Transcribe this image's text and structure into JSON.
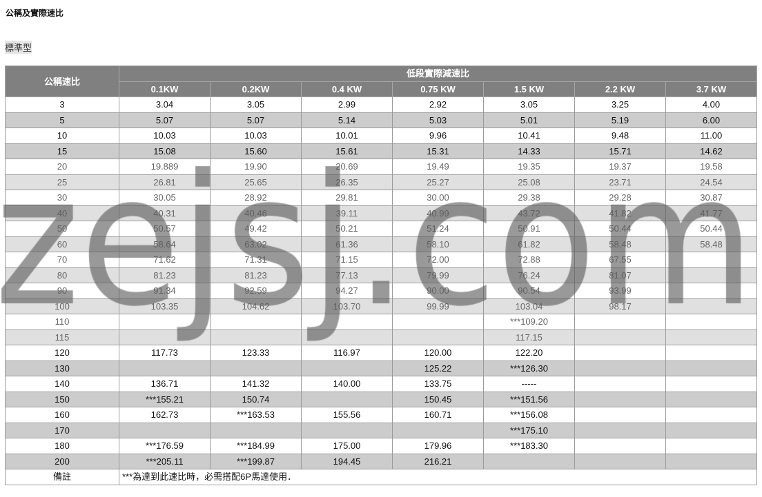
{
  "title": "公稱及實際速比",
  "subtitle": "標準型",
  "table": {
    "row_header": "公稱速比",
    "group_header": "低段實際減速比",
    "columns": [
      "0.1KW",
      "0.2KW",
      "0.4 KW",
      "0.75 KW",
      "1.5 KW",
      "2.2 KW",
      "3.7 KW"
    ],
    "rows": [
      {
        "ratio": "3",
        "style": "dark",
        "values": [
          "3.04",
          "3.05",
          "2.99",
          "2.92",
          "3.05",
          "3.25",
          "4.00"
        ]
      },
      {
        "ratio": "5",
        "style": "dark",
        "values": [
          "5.07",
          "5.07",
          "5.14",
          "5.03",
          "5.01",
          "5.19",
          "6.00"
        ]
      },
      {
        "ratio": "10",
        "style": "dark",
        "values": [
          "10.03",
          "10.03",
          "10.01",
          "9.96",
          "10.41",
          "9.48",
          "11.00"
        ]
      },
      {
        "ratio": "15",
        "style": "dark",
        "values": [
          "15.08",
          "15.60",
          "15.61",
          "15.31",
          "14.33",
          "15.71",
          "14.62"
        ]
      },
      {
        "ratio": "20",
        "style": "light",
        "values": [
          "19.889",
          "19.90",
          "20.69",
          "19.49",
          "19.35",
          "19.37",
          "19.58"
        ]
      },
      {
        "ratio": "25",
        "style": "light",
        "values": [
          "26.81",
          "25.65",
          "26.35",
          "25.27",
          "25.08",
          "23.71",
          "24.54"
        ]
      },
      {
        "ratio": "30",
        "style": "light",
        "values": [
          "30.05",
          "28.92",
          "29.81",
          "30.00",
          "29.38",
          "29.28",
          "30.87"
        ]
      },
      {
        "ratio": "40",
        "style": "light",
        "values": [
          "40.31",
          "40.46",
          "39.11",
          "40.99",
          "43.72",
          "41.82",
          "41.77"
        ]
      },
      {
        "ratio": "50",
        "style": "light",
        "values": [
          "50.57",
          "49.42",
          "50.21",
          "51.24",
          "50.91",
          "50.44",
          "50.44"
        ]
      },
      {
        "ratio": "60",
        "style": "light",
        "values": [
          "58.64",
          "63.02",
          "61.36",
          "58.10",
          "61.82",
          "58.48",
          "58.48"
        ]
      },
      {
        "ratio": "70",
        "style": "light",
        "values": [
          "71.62",
          "71.31",
          "71.15",
          "72.00",
          "72.88",
          "67.55",
          ""
        ]
      },
      {
        "ratio": "80",
        "style": "light",
        "values": [
          "81.23",
          "81.23",
          "77.13",
          "79.99",
          "76.24",
          "81.07",
          ""
        ]
      },
      {
        "ratio": "90",
        "style": "light",
        "values": [
          "91.34",
          "92.59",
          "94.27",
          "90.00",
          "90.54",
          "93.99",
          ""
        ]
      },
      {
        "ratio": "100",
        "style": "light",
        "values": [
          "103.35",
          "104.62",
          "103.70",
          "99.99",
          "103.04",
          "98.17",
          ""
        ]
      },
      {
        "ratio": "110",
        "style": "light",
        "values": [
          "",
          "",
          "",
          "",
          "***109.20",
          "",
          ""
        ]
      },
      {
        "ratio": "115",
        "style": "light",
        "values": [
          "",
          "",
          "",
          "",
          "117.15",
          "",
          ""
        ]
      },
      {
        "ratio": "120",
        "style": "dark",
        "values": [
          "117.73",
          "123.33",
          "116.97",
          "120.00",
          "122.20",
          "",
          ""
        ]
      },
      {
        "ratio": "130",
        "style": "dark",
        "values": [
          "",
          "",
          "",
          "125.22",
          "***126.30",
          "",
          ""
        ]
      },
      {
        "ratio": "140",
        "style": "dark",
        "values": [
          "136.71",
          "141.32",
          "140.00",
          "133.75",
          "-----",
          "",
          ""
        ]
      },
      {
        "ratio": "150",
        "style": "dark",
        "values": [
          "***155.21",
          "150.74",
          "",
          "150.45",
          "***151.56",
          "",
          ""
        ]
      },
      {
        "ratio": "160",
        "style": "dark",
        "values": [
          "162.73",
          "***163.53",
          "155.56",
          "160.71",
          "***156.08",
          "",
          ""
        ]
      },
      {
        "ratio": "170",
        "style": "dark",
        "values": [
          "",
          "",
          "",
          "",
          "***175.10",
          "",
          ""
        ]
      },
      {
        "ratio": "180",
        "style": "dark",
        "values": [
          "***176.59",
          "***184.99",
          "175.00",
          "179.96",
          "***183.30",
          "",
          ""
        ]
      },
      {
        "ratio": "200",
        "style": "dark",
        "values": [
          "***205.11",
          "***199.87",
          "194.45",
          "216.21",
          "",
          "",
          ""
        ]
      }
    ],
    "remark_label": "備註",
    "remark_text": "***為達到此速比時，必需搭配6P馬達使用．"
  },
  "watermark": "zejsj.com",
  "colors": {
    "header_bg": "#808080",
    "row_alt_dark": "#cccccc",
    "row_alt_light": "#e0e0e0"
  }
}
